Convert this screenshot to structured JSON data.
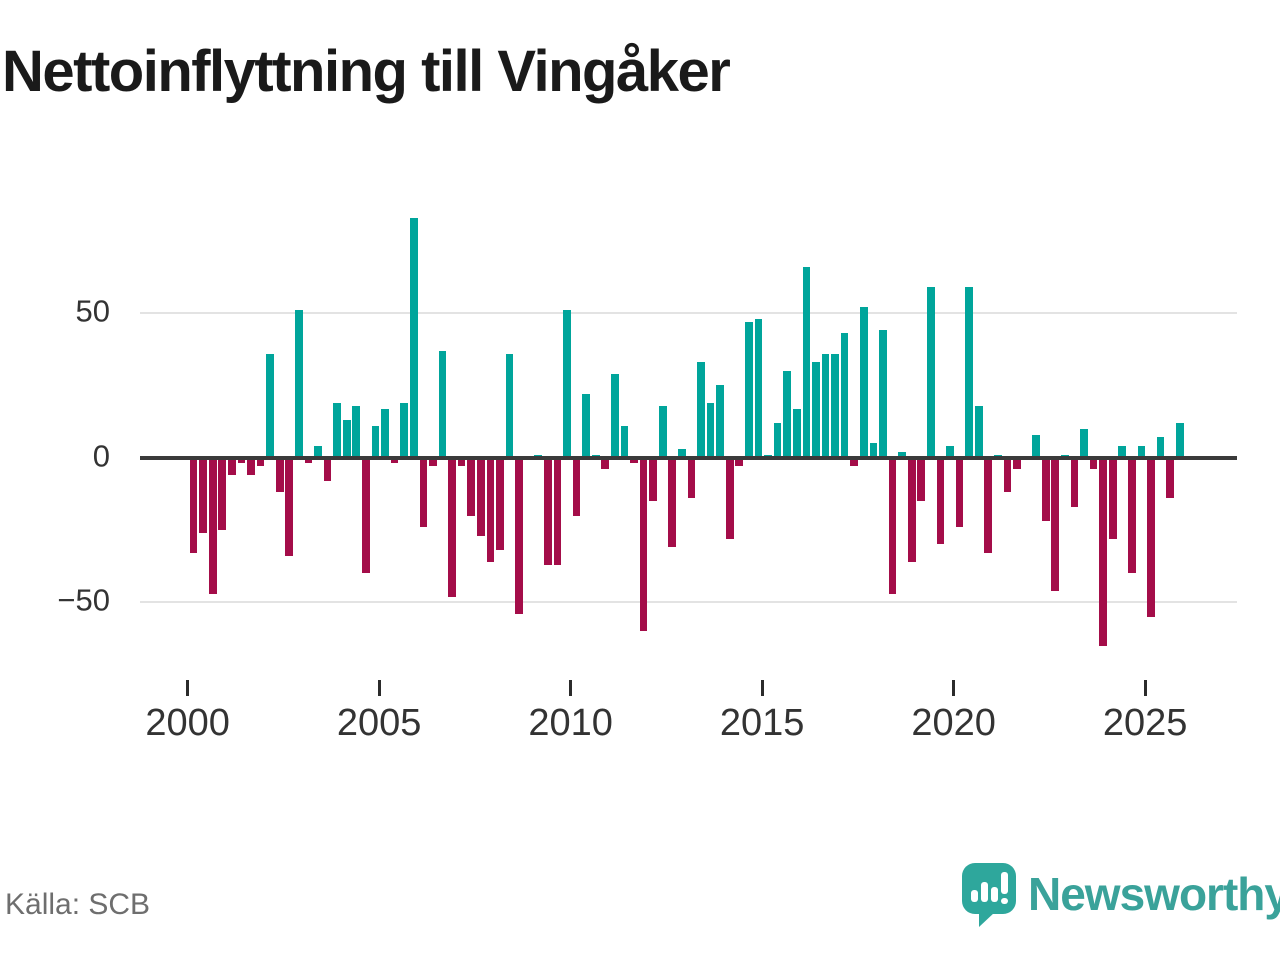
{
  "title": "Nettoinflyttning till Vingåker",
  "source": {
    "label": "Källa: SCB"
  },
  "branding": {
    "name": "Newsworthy",
    "icon": "newsworthy-bubble-chart-icon",
    "color": "#3aa29a"
  },
  "chart_data": {
    "type": "bar",
    "title": "Nettoinflyttning till Vingåker",
    "frequency": "quarterly",
    "start": "2000Q1",
    "end": "2025Q4",
    "x_tick_labels": [
      "2000",
      "2005",
      "2010",
      "2015",
      "2020",
      "2025"
    ],
    "y_tick_values": [
      50,
      0,
      -50
    ],
    "y_axis_range": [
      -70,
      90
    ],
    "grid": "horizontal",
    "legend": "none",
    "colors": {
      "positive": "#00a59b",
      "negative": "#a40d49",
      "zero_line": "#3a3a3a",
      "gridline": "#e3e3e3"
    },
    "values": [
      -33,
      -26,
      -47,
      -25,
      -6,
      -2,
      -6,
      -3,
      36,
      -12,
      -34,
      51,
      -2,
      4,
      -8,
      19,
      13,
      18,
      -40,
      11,
      17,
      -2,
      19,
      83,
      -24,
      -3,
      37,
      -48,
      -3,
      -20,
      -27,
      -36,
      -32,
      36,
      -54,
      0,
      1,
      -37,
      -37,
      51,
      -20,
      22,
      1,
      -4,
      29,
      11,
      -2,
      -60,
      -15,
      18,
      -31,
      3,
      -14,
      33,
      19,
      25,
      -28,
      -3,
      47,
      48,
      1,
      12,
      30,
      17,
      66,
      33,
      36,
      36,
      43,
      -3,
      52,
      5,
      44,
      -47,
      2,
      -36,
      -15,
      59,
      -30,
      4,
      -24,
      59,
      18,
      -33,
      1,
      -12,
      -4,
      0,
      8,
      -22,
      -46,
      1,
      -17,
      10,
      -4,
      -65,
      -28,
      4,
      -40,
      4,
      -55,
      7,
      -14,
      12
    ]
  }
}
